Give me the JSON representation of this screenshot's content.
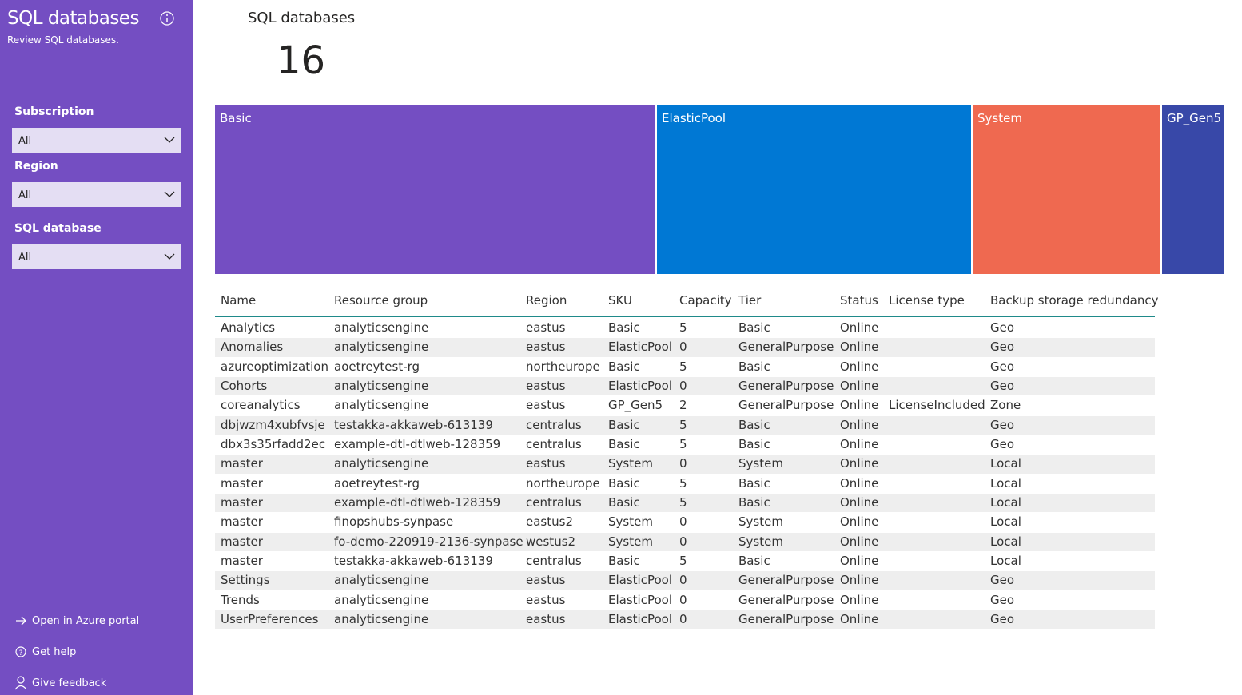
{
  "sidebar": {
    "title": "SQL databases",
    "subtitle": "Review SQL databases.",
    "filters": [
      {
        "label": "Subscription",
        "value": "All"
      },
      {
        "label": "Region",
        "value": "All"
      },
      {
        "label": "SQL database",
        "value": "All"
      }
    ],
    "links": [
      "Open in Azure portal",
      "Get help",
      "Give feedback"
    ]
  },
  "card": {
    "title": "SQL databases",
    "value": 16
  },
  "chart_data": {
    "type": "treemap",
    "categories": [
      "Basic",
      "ElasticPool",
      "System",
      "GP_Gen5"
    ],
    "values": [
      7,
      5,
      3,
      1
    ],
    "colors": [
      "#744ec2",
      "#0078d4",
      "#ef6950",
      "#3848a8"
    ]
  },
  "table": {
    "columns": [
      "Name",
      "Resource group",
      "Region",
      "SKU",
      "Capacity",
      "Tier",
      "Status",
      "License type",
      "Backup storage redundancy"
    ],
    "rows": [
      [
        "Analytics",
        "analyticsengine",
        "eastus",
        "Basic",
        5,
        "Basic",
        "Online",
        null,
        "Geo"
      ],
      [
        "Anomalies",
        "analyticsengine",
        "eastus",
        "ElasticPool",
        0,
        "GeneralPurpose",
        "Online",
        null,
        "Geo"
      ],
      [
        "azureoptimization",
        "aoetreytest-rg",
        "northeurope",
        "Basic",
        5,
        "Basic",
        "Online",
        null,
        "Geo"
      ],
      [
        "Cohorts",
        "analyticsengine",
        "eastus",
        "ElasticPool",
        0,
        "GeneralPurpose",
        "Online",
        null,
        "Geo"
      ],
      [
        "coreanalytics",
        "analyticsengine",
        "eastus",
        "GP_Gen5",
        2,
        "GeneralPurpose",
        "Online",
        "LicenseIncluded",
        "Zone"
      ],
      [
        "dbjwzm4xubfvsje",
        "testakka-akkaweb-613139",
        "centralus",
        "Basic",
        5,
        "Basic",
        "Online",
        null,
        "Geo"
      ],
      [
        "dbx3s35rfadd2ec",
        "example-dtl-dtlweb-128359",
        "centralus",
        "Basic",
        5,
        "Basic",
        "Online",
        null,
        "Geo"
      ],
      [
        "master",
        "analyticsengine",
        "eastus",
        "System",
        0,
        "System",
        "Online",
        null,
        "Local"
      ],
      [
        "master",
        "aoetreytest-rg",
        "northeurope",
        "Basic",
        5,
        "Basic",
        "Online",
        null,
        "Local"
      ],
      [
        "master",
        "example-dtl-dtlweb-128359",
        "centralus",
        "Basic",
        5,
        "Basic",
        "Online",
        null,
        "Local"
      ],
      [
        "master",
        "finopshubs-synpase",
        "eastus2",
        "System",
        0,
        "System",
        "Online",
        null,
        "Local"
      ],
      [
        "master",
        "fo-demo-220919-2136-synpase",
        "westus2",
        "System",
        0,
        "System",
        "Online",
        null,
        "Local"
      ],
      [
        "master",
        "testakka-akkaweb-613139",
        "centralus",
        "Basic",
        5,
        "Basic",
        "Online",
        null,
        "Local"
      ],
      [
        "Settings",
        "analyticsengine",
        "eastus",
        "ElasticPool",
        0,
        "GeneralPurpose",
        "Online",
        null,
        "Geo"
      ],
      [
        "Trends",
        "analyticsengine",
        "eastus",
        "ElasticPool",
        0,
        "GeneralPurpose",
        "Online",
        null,
        "Geo"
      ],
      [
        "UserPreferences",
        "analyticsengine",
        "eastus",
        "ElasticPool",
        0,
        "GeneralPurpose",
        "Online",
        null,
        "Geo"
      ]
    ]
  }
}
